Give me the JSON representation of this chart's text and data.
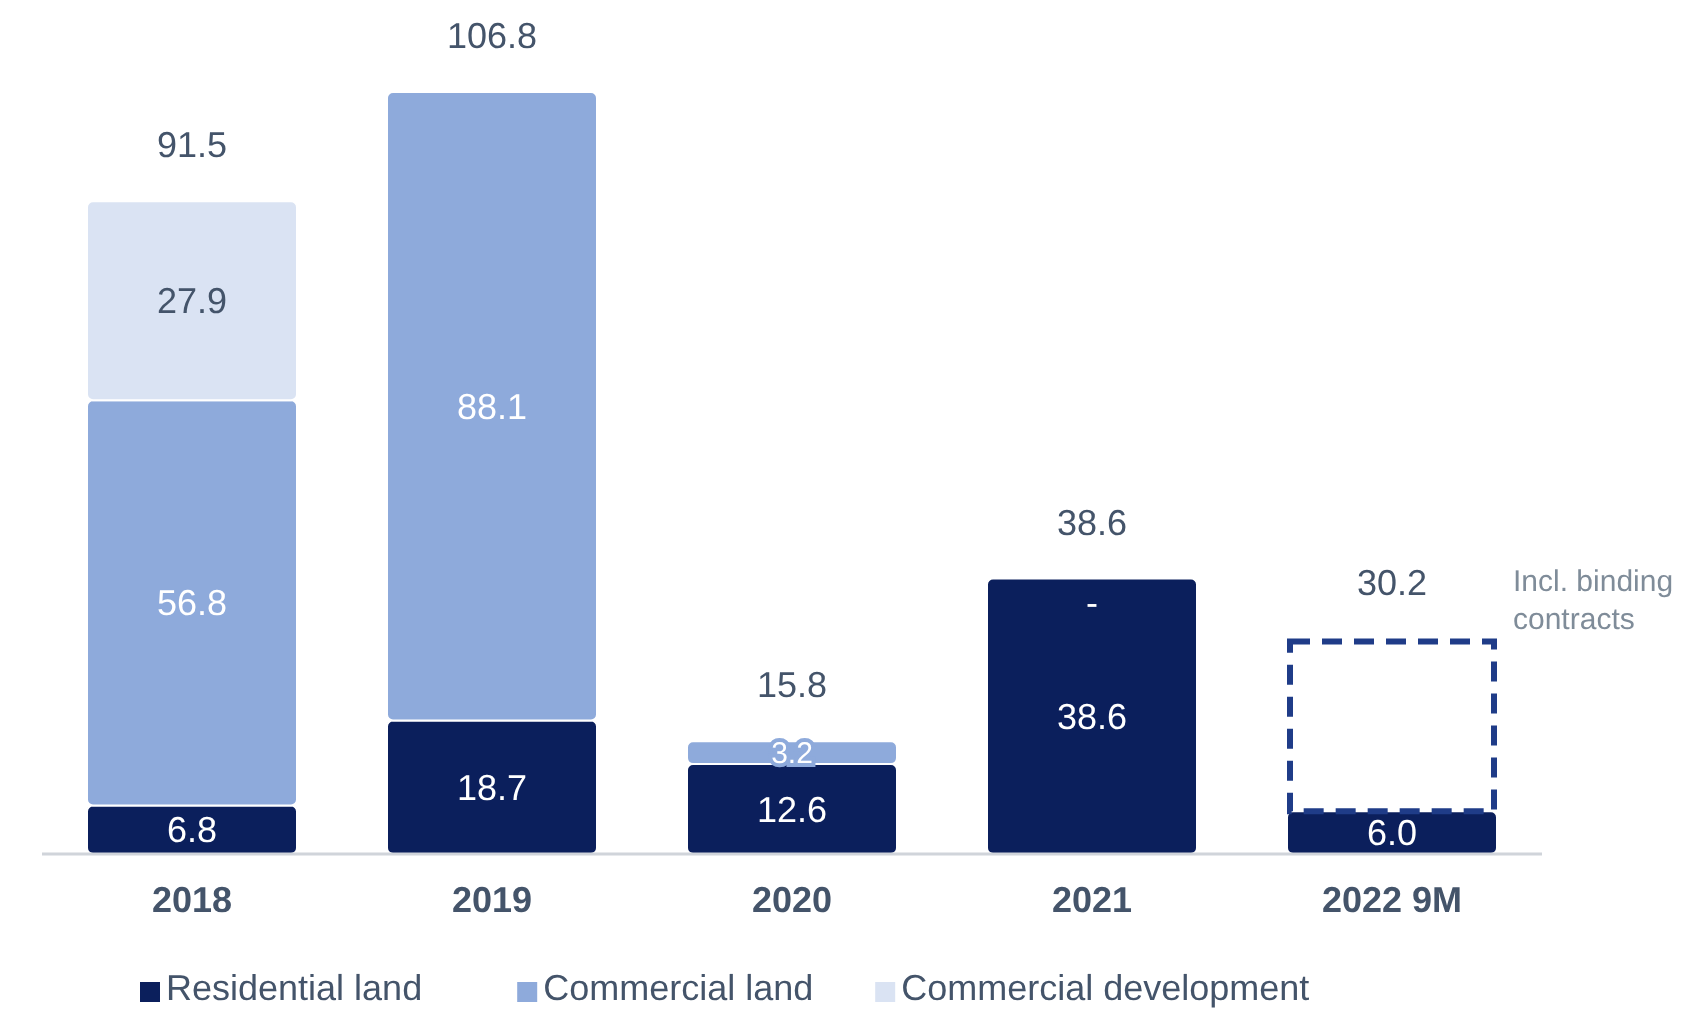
{
  "chart_data": {
    "type": "bar",
    "stacked": true,
    "categories": [
      "2018",
      "2019",
      "2020",
      "2021",
      "2022 9M"
    ],
    "series": [
      {
        "name": "Residential land",
        "color": "#0b1f5c",
        "values": [
          6.8,
          18.7,
          12.6,
          38.6,
          6.0
        ],
        "value_labels": [
          "6.8",
          "18.7",
          "12.6",
          "38.6",
          "6.0"
        ]
      },
      {
        "name": "Commercial land",
        "color": "#8eaadb",
        "values": [
          56.8,
          88.1,
          3.2,
          0,
          null
        ],
        "value_labels": [
          "56.8",
          "88.1",
          "3.2",
          "-",
          null
        ]
      },
      {
        "name": "Commercial development",
        "color": "#dae3f3",
        "values": [
          27.9,
          null,
          null,
          null,
          null
        ],
        "value_labels": [
          "27.9",
          null,
          null,
          null,
          null
        ]
      },
      {
        "color": "#1f3c88",
        "line_style": "dashed",
        "values": [
          null,
          null,
          null,
          null,
          24.2
        ]
      }
    ],
    "totals": [
      "91.5",
      "106.8",
      "15.8",
      "38.6",
      "30.2"
    ],
    "annotations": [
      "Incl. binding contracts"
    ],
    "legend": "bottom"
  }
}
